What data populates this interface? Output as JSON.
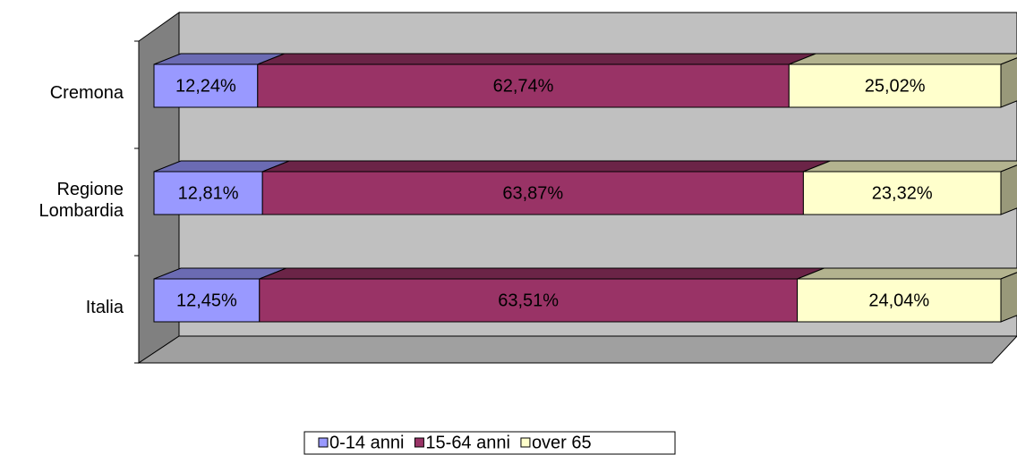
{
  "chart_data": {
    "type": "stacked-bar-horizontal",
    "categories": [
      "Cremona",
      "Regione Lombardia",
      "Italia"
    ],
    "series": [
      {
        "name": "0-14 anni",
        "color": "#9999ff",
        "values": [
          12.24,
          12.81,
          12.45
        ],
        "value_labels": [
          "12,24%",
          "12,81%",
          "12,45%"
        ]
      },
      {
        "name": "15-64 anni",
        "color": "#993366",
        "values": [
          62.74,
          63.87,
          63.51
        ],
        "value_labels": [
          "62,74%",
          "63,87%",
          "63,51%"
        ]
      },
      {
        "name": "over 65",
        "color": "#ffffcc",
        "values": [
          25.02,
          23.32,
          24.04
        ],
        "value_labels": [
          "25,02%",
          "23,32%",
          "24,04%"
        ]
      }
    ],
    "legend": "bottom"
  }
}
